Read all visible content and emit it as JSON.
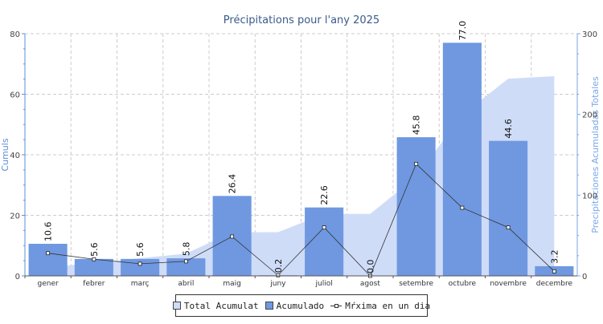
{
  "chart_data": {
    "type": "bar",
    "title": "Précipitations pour l'any 2025",
    "ylabel_left": "Cumuls",
    "ylabel_right": "Precipitaciones Acumuladas Totales",
    "ylim_left": [
      0,
      80
    ],
    "ylim_right": [
      0,
      300
    ],
    "yticks_left": [
      0,
      20,
      40,
      60,
      80
    ],
    "yticks_right": [
      0,
      100,
      200,
      300
    ],
    "grid": true,
    "legend_placement": "bottom",
    "categories": [
      "gener",
      "febrer",
      "març",
      "abril",
      "maig",
      "juny",
      "juliol",
      "agost",
      "setembre",
      "octubre",
      "novembre",
      "decembre"
    ],
    "series": [
      {
        "name": "Total Acumulat",
        "kind": "area",
        "axis": "right",
        "color": "#cfdcf8",
        "values": [
          10.6,
          16.2,
          21.8,
          27.6,
          54.0,
          54.2,
          76.8,
          76.8,
          122.6,
          199.6,
          244.2,
          247.4
        ]
      },
      {
        "name": "Acumulado",
        "kind": "bar",
        "axis": "left",
        "color": "#6f98e0",
        "values": [
          10.6,
          5.6,
          5.6,
          5.8,
          26.4,
          0.2,
          22.6,
          0.0,
          45.8,
          77.0,
          44.6,
          3.2
        ],
        "labels": [
          "10.6",
          "5.6",
          "5.6",
          "5.8",
          "26.4",
          "0.2",
          "22.6",
          "0.0",
          "45.8",
          "77.0",
          "44.6",
          "3.2"
        ]
      },
      {
        "name": "Màxima en un dia",
        "legend_label": "Mŕxima en un dia",
        "kind": "line",
        "axis": "left",
        "color": "#333333",
        "values": [
          7.5,
          5.5,
          4.0,
          4.8,
          13.0,
          0.2,
          16.0,
          0.0,
          37.0,
          22.5,
          16.0,
          1.5
        ]
      }
    ]
  },
  "colors": {
    "axis_left": "#5b8fd8",
    "axis_right": "#7aa6e6",
    "title": "#3a5a8a",
    "grid": "#cccccc"
  }
}
